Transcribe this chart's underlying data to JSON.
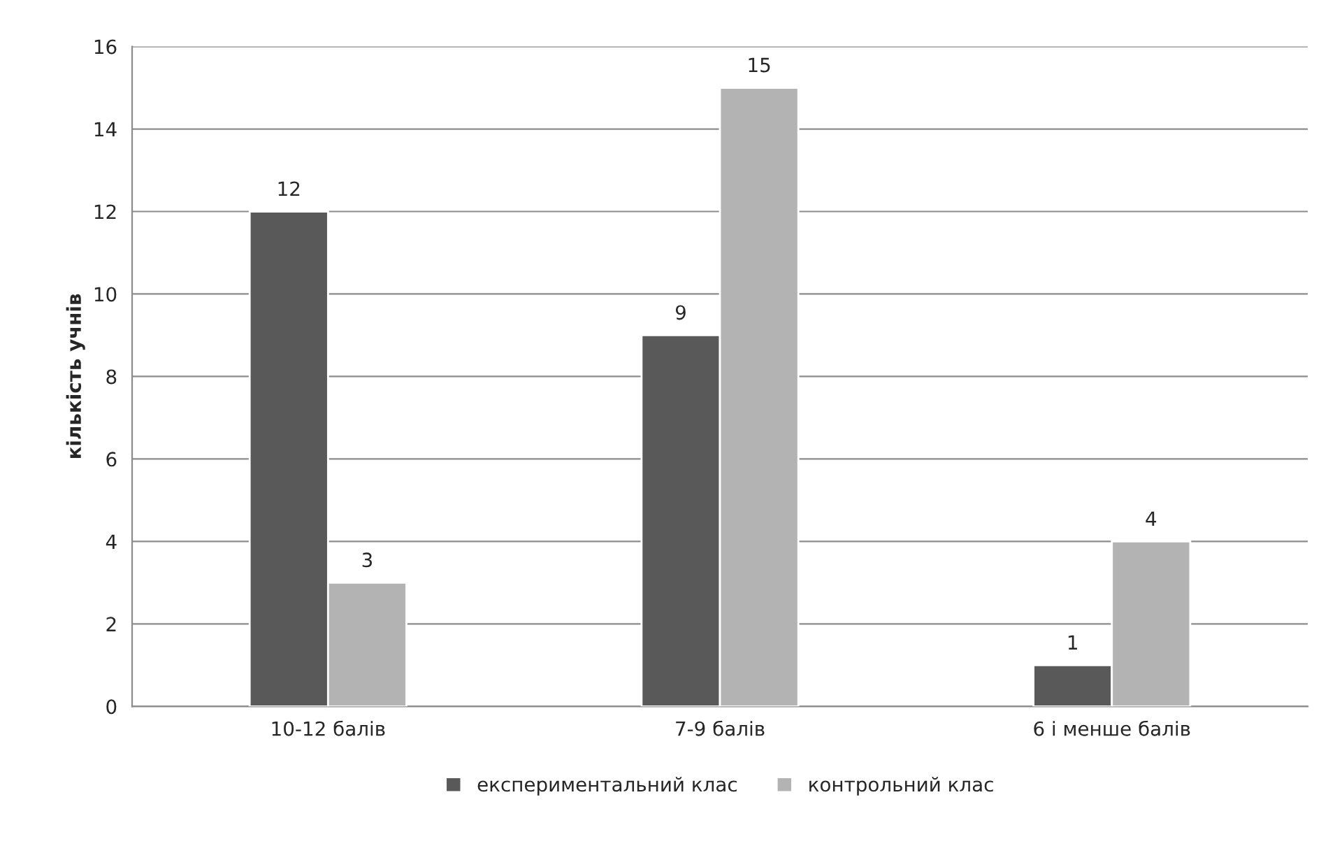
{
  "chart_data": {
    "type": "bar",
    "ylabel": "кількість учнів",
    "categories": [
      "10-12 балів",
      "7-9 балів",
      "6 і менше балів"
    ],
    "series": [
      {
        "name": "експериментальний клас",
        "color": "#595959",
        "values": [
          12,
          9,
          1
        ]
      },
      {
        "name": "контрольний клас",
        "color": "#b3b3b3",
        "values": [
          3,
          15,
          4
        ]
      }
    ],
    "ylim": [
      0,
      16
    ],
    "yticks": [
      0,
      2,
      4,
      6,
      8,
      10,
      12,
      14,
      16
    ],
    "grid": "y",
    "legend": "bottom",
    "data_labels": true
  }
}
